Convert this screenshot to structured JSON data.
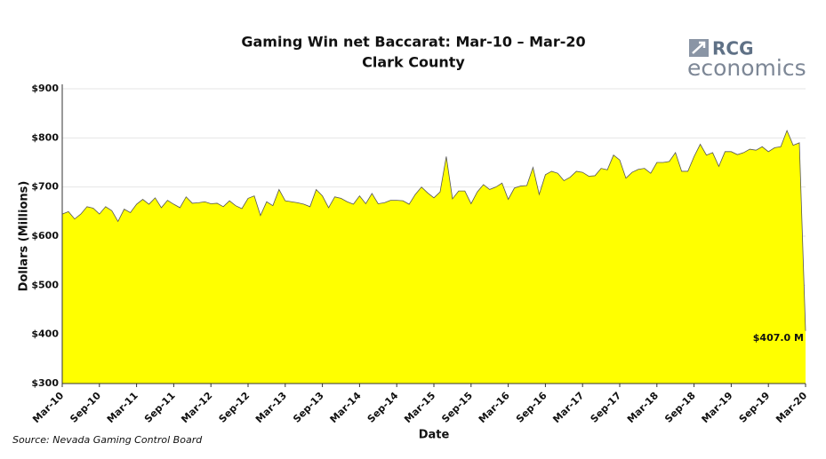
{
  "logo": {
    "brand": "RCG",
    "word": "economics"
  },
  "chart_data": {
    "type": "area",
    "title": "Gaming Win net Baccarat: Mar-10 – Mar-20",
    "subtitle": "Clark County",
    "x_label": "Date",
    "y_label": "Dollars (Millions)",
    "source": "Source: Nevada Gaming Control Board",
    "color": "#ffff00",
    "line_color": "#555555",
    "grid": true,
    "ylim": [
      300,
      900
    ],
    "yticks": [
      {
        "value": 300,
        "label": "$300"
      },
      {
        "value": 400,
        "label": "$400"
      },
      {
        "value": 500,
        "label": "$500"
      },
      {
        "value": 600,
        "label": "$600"
      },
      {
        "value": 700,
        "label": "$700"
      },
      {
        "value": 800,
        "label": "$800"
      },
      {
        "value": 900,
        "label": "$900"
      }
    ],
    "categories": [
      "Mar-10",
      null,
      null,
      null,
      null,
      null,
      "Sep-10",
      null,
      null,
      null,
      null,
      null,
      "Mar-11",
      null,
      null,
      null,
      null,
      null,
      "Sep-11",
      null,
      null,
      null,
      null,
      null,
      "Mar-12",
      null,
      null,
      null,
      null,
      null,
      "Sep-12",
      null,
      null,
      null,
      null,
      null,
      "Mar-13",
      null,
      null,
      null,
      null,
      null,
      "Sep-13",
      null,
      null,
      null,
      null,
      null,
      "Mar-14",
      null,
      null,
      null,
      null,
      null,
      "Sep-14",
      null,
      null,
      null,
      null,
      null,
      "Mar-15",
      null,
      null,
      null,
      null,
      null,
      "Sep-15",
      null,
      null,
      null,
      null,
      null,
      "Mar-16",
      null,
      null,
      null,
      null,
      null,
      "Sep-16",
      null,
      null,
      null,
      null,
      null,
      "Mar-17",
      null,
      null,
      null,
      null,
      null,
      "Sep-17",
      null,
      null,
      null,
      null,
      null,
      "Mar-18",
      null,
      null,
      null,
      null,
      null,
      "Sep-18",
      null,
      null,
      null,
      null,
      null,
      "Mar-19",
      null,
      null,
      null,
      null,
      null,
      "Sep-19",
      null,
      null,
      null,
      null,
      null,
      "Mar-20"
    ],
    "values": [
      645,
      650,
      635,
      645,
      660,
      657,
      645,
      660,
      652,
      630,
      655,
      648,
      665,
      675,
      665,
      678,
      658,
      673,
      665,
      658,
      680,
      667,
      668,
      670,
      666,
      667,
      660,
      672,
      662,
      656,
      677,
      682,
      642,
      670,
      662,
      695,
      672,
      670,
      668,
      665,
      660,
      695,
      682,
      658,
      680,
      677,
      670,
      665,
      682,
      666,
      687,
      666,
      668,
      673,
      673,
      672,
      665,
      685,
      700,
      688,
      678,
      690,
      762,
      676,
      692,
      692,
      666,
      690,
      705,
      695,
      700,
      708,
      675,
      698,
      702,
      703,
      740,
      685,
      725,
      732,
      728,
      713,
      720,
      732,
      730,
      722,
      723,
      738,
      735,
      765,
      755,
      718,
      730,
      736,
      738,
      728,
      750,
      750,
      752,
      770,
      732,
      732,
      762,
      787,
      765,
      770,
      742,
      772,
      772,
      766,
      770,
      777,
      775,
      782,
      772,
      780,
      782,
      815,
      785,
      790,
      407
    ],
    "value_labels": [
      null,
      null,
      null,
      null,
      null,
      null,
      null,
      null,
      null,
      null,
      null,
      null,
      null,
      null,
      null,
      null,
      null,
      null,
      null,
      null,
      null,
      null,
      null,
      null,
      null,
      null,
      null,
      null,
      null,
      null,
      null,
      null,
      null,
      null,
      null,
      null,
      null,
      null,
      null,
      null,
      null,
      null,
      null,
      null,
      null,
      null,
      null,
      null,
      null,
      null,
      null,
      null,
      null,
      null,
      null,
      null,
      null,
      null,
      null,
      null,
      null,
      null,
      null,
      null,
      null,
      null,
      null,
      null,
      null,
      null,
      null,
      null,
      null,
      null,
      null,
      null,
      null,
      null,
      null,
      null,
      null,
      null,
      null,
      null,
      null,
      null,
      null,
      null,
      null,
      null,
      null,
      null,
      null,
      null,
      null,
      null,
      null,
      null,
      null,
      null,
      null,
      null,
      null,
      null,
      null,
      null,
      null,
      null,
      null,
      null,
      null,
      null,
      null,
      null,
      null,
      null,
      null,
      null,
      null,
      null,
      "$407.0 M"
    ]
  }
}
